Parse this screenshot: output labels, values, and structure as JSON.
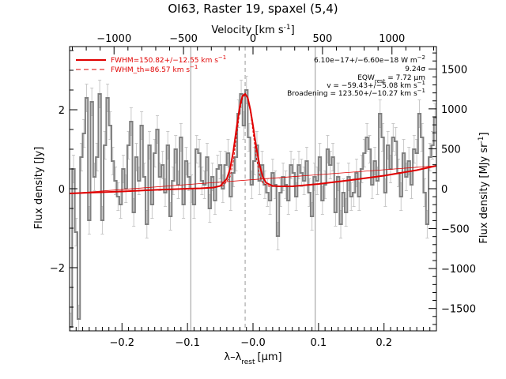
{
  "chart_data": {
    "type": "line",
    "title": "OI63, Raster 19, spaxel (5,4)",
    "xlabel": "λ–λ",
    "xlabel_sub": "rest",
    "xlabel_unit": "[μm]",
    "ylabel": "Flux density [Jy]",
    "top_xlabel": "Velocity [km s",
    "top_xlabel_sup": "-1",
    "top_xlabel_end": "]",
    "right_ylabel": "Flux density [MJy sr",
    "right_ylabel_sup": "-1",
    "right_ylabel_end": "]",
    "xlim": [
      -0.28,
      0.28
    ],
    "ylim": [
      -3.6,
      3.6
    ],
    "top_xlim": [
      -1320,
      1320
    ],
    "right_ylim": [
      -1780,
      1780
    ],
    "x_ticks": [
      {
        "v": -0.2,
        "label": "−0.2"
      },
      {
        "v": -0.1,
        "label": "−0.1"
      },
      {
        "v": 0.0,
        "label": "−0.0"
      },
      {
        "v": 0.1,
        "label": "0.1"
      },
      {
        "v": 0.2,
        "label": "0.2"
      }
    ],
    "y_ticks": [
      {
        "v": -2,
        "label": "−2"
      },
      {
        "v": 0,
        "label": "0"
      },
      {
        "v": 2,
        "label": "2"
      }
    ],
    "top_x_ticks": [
      {
        "v": -1000,
        "label": "−1000"
      },
      {
        "v": -500,
        "label": "−500"
      },
      {
        "v": 0,
        "label": "0"
      },
      {
        "v": 500,
        "label": "500"
      },
      {
        "v": 1000,
        "label": "1000"
      }
    ],
    "right_y_ticks": [
      {
        "v": -1500,
        "label": "−1500"
      },
      {
        "v": -1000,
        "label": "−1000"
      },
      {
        "v": -500,
        "label": "−500"
      },
      {
        "v": 0,
        "label": "0"
      },
      {
        "v": 500,
        "label": "500"
      },
      {
        "v": 1000,
        "label": "1000"
      },
      {
        "v": 1500,
        "label": "1500"
      }
    ],
    "vertical_lines": [
      -0.095,
      0.095
    ],
    "dashed_line_x": -0.012,
    "spectrum_color": "#808080",
    "fit_color": "#e00000",
    "spectrum": {
      "x": [
        -0.28,
        -0.276,
        -0.272,
        -0.268,
        -0.264,
        -0.26,
        -0.256,
        -0.252,
        -0.248,
        -0.244,
        -0.24,
        -0.236,
        -0.232,
        -0.228,
        -0.224,
        -0.22,
        -0.216,
        -0.212,
        -0.208,
        -0.204,
        -0.2,
        -0.196,
        -0.192,
        -0.188,
        -0.184,
        -0.18,
        -0.176,
        -0.172,
        -0.168,
        -0.164,
        -0.16,
        -0.156,
        -0.152,
        -0.148,
        -0.144,
        -0.14,
        -0.136,
        -0.132,
        -0.128,
        -0.124,
        -0.12,
        -0.116,
        -0.112,
        -0.108,
        -0.104,
        -0.1,
        -0.096,
        -0.092,
        -0.088,
        -0.084,
        -0.08,
        -0.076,
        -0.072,
        -0.068,
        -0.064,
        -0.06,
        -0.056,
        -0.052,
        -0.048,
        -0.044,
        -0.04,
        -0.036,
        -0.032,
        -0.028,
        -0.024,
        -0.02,
        -0.016,
        -0.012,
        -0.008,
        -0.004,
        0.0,
        0.004,
        0.008,
        0.012,
        0.016,
        0.02,
        0.024,
        0.028,
        0.032,
        0.036,
        0.04,
        0.044,
        0.048,
        0.052,
        0.056,
        0.06,
        0.064,
        0.068,
        0.072,
        0.076,
        0.08,
        0.084,
        0.088,
        0.092,
        0.096,
        0.1,
        0.104,
        0.108,
        0.112,
        0.116,
        0.12,
        0.124,
        0.128,
        0.132,
        0.136,
        0.14,
        0.144,
        0.148,
        0.152,
        0.156,
        0.16,
        0.164,
        0.168,
        0.172,
        0.176,
        0.18,
        0.184,
        0.188,
        0.192,
        0.196,
        0.2,
        0.204,
        0.208,
        0.212,
        0.216,
        0.22,
        0.224,
        0.228,
        0.232,
        0.236,
        0.24,
        0.244,
        0.248,
        0.252,
        0.256,
        0.26,
        0.264,
        0.268,
        0.272,
        0.276
      ],
      "y": [
        -3.5,
        0.5,
        -1.1,
        -3.3,
        0.8,
        1.4,
        2.3,
        -0.8,
        2.2,
        0.3,
        0.8,
        2.4,
        -0.8,
        1.1,
        2.3,
        1.6,
        0.7,
        0.2,
        -0.2,
        -0.4,
        0.5,
        0.0,
        1.1,
        1.7,
        -0.6,
        0.8,
        0.2,
        1.6,
        0.3,
        -0.9,
        1.1,
        -0.4,
        0.9,
        1.5,
        0.3,
        0.6,
        -0.1,
        1.1,
        -0.7,
        0.2,
        1.0,
        0.1,
        1.3,
        -0.4,
        0.7,
        0.3,
        0.0,
        -0.4,
        1.0,
        0.9,
        0.2,
        0.1,
        0.8,
        -0.5,
        0.3,
        -0.3,
        0.5,
        0.6,
        0.0,
        0.6,
        0.9,
        -0.2,
        0.4,
        0.8,
        1.9,
        2.4,
        1.6,
        2.5,
        1.3,
        0.1,
        0.7,
        1.1,
        0.2,
        0.6,
        0.1,
        -0.1,
        -0.3,
        0.4,
        0.1,
        -1.2,
        -0.1,
        0.3,
        0.1,
        -0.3,
        0.6,
        0.4,
        -0.2,
        0.6,
        0.4,
        0.2,
        0.7,
        -0.1,
        -0.7,
        0.3,
        0.2,
        0.8,
        -0.3,
        0.1,
        1.0,
        0.6,
        0.8,
        -0.6,
        0.3,
        -0.9,
        -0.1,
        -0.6,
        0.3,
        -0.2,
        -0.1,
        0.4,
        -0.2,
        0.5,
        0.9,
        1.3,
        1.0,
        0.1,
        0.7,
        0.2,
        1.9,
        1.3,
        -0.1,
        1.1,
        0.5,
        1.3,
        1.2,
        0.4,
        -0.2,
        0.9,
        0.3,
        0.7,
        0.1,
        1.0,
        0.9,
        1.9,
        1.3,
        -0.1,
        -0.9,
        0.8,
        1.1,
        1.8
      ]
    },
    "fit_total": {
      "x": [
        -0.28,
        -0.25,
        -0.2,
        -0.15,
        -0.1,
        -0.08,
        -0.06,
        -0.05,
        -0.04,
        -0.035,
        -0.03,
        -0.025,
        -0.02,
        -0.016,
        -0.012,
        -0.008,
        -0.004,
        0.0,
        0.005,
        0.01,
        0.015,
        0.02,
        0.03,
        0.04,
        0.06,
        0.08,
        0.1,
        0.15,
        0.2,
        0.25,
        0.28
      ],
      "y": [
        -0.12,
        -0.1,
        -0.07,
        -0.03,
        0.0,
        0.01,
        0.03,
        0.07,
        0.25,
        0.5,
        0.95,
        1.55,
        2.1,
        2.35,
        2.4,
        2.3,
        2.0,
        1.6,
        1.05,
        0.6,
        0.3,
        0.15,
        0.07,
        0.06,
        0.06,
        0.09,
        0.12,
        0.22,
        0.33,
        0.47,
        0.58
      ]
    },
    "fit_continuum": {
      "x": [
        -0.28,
        0.28
      ],
      "y": [
        -0.12,
        0.58
      ]
    },
    "fit_theoretical": {
      "x": [
        -0.06,
        -0.045,
        -0.035,
        -0.03,
        -0.025,
        -0.02,
        -0.016,
        -0.012,
        -0.008,
        -0.004,
        0.0,
        0.005,
        0.01,
        0.015,
        0.025,
        0.04
      ],
      "y": [
        0.03,
        0.08,
        0.3,
        0.7,
        1.35,
        2.0,
        2.3,
        2.38,
        2.3,
        1.95,
        1.45,
        0.8,
        0.35,
        0.14,
        0.06,
        0.06
      ]
    },
    "legend": [
      {
        "label": "FWHM=150.82+/−12.55 km s",
        "sup": "−1",
        "style": "solid"
      },
      {
        "label": "FWHM_th=86.57 km s",
        "sup": "−1",
        "style": "dashed"
      }
    ],
    "annotations": [
      {
        "text": "6.10e−17+/−6.60e−18 W m",
        "sup": "−2",
        "sub": ""
      },
      {
        "text": "9.24σ",
        "sup": "",
        "sub": ""
      },
      {
        "text": "EQW",
        "sub": "rest",
        "rest": " = 7.72 μm",
        "sup": ""
      },
      {
        "text": "v = −59.43+/−5.08 km s",
        "sup": "−1",
        "sub": ""
      },
      {
        "text": "Broadening = 123.50+/−10.27 km s",
        "sup": "−1",
        "sub": ""
      }
    ]
  }
}
